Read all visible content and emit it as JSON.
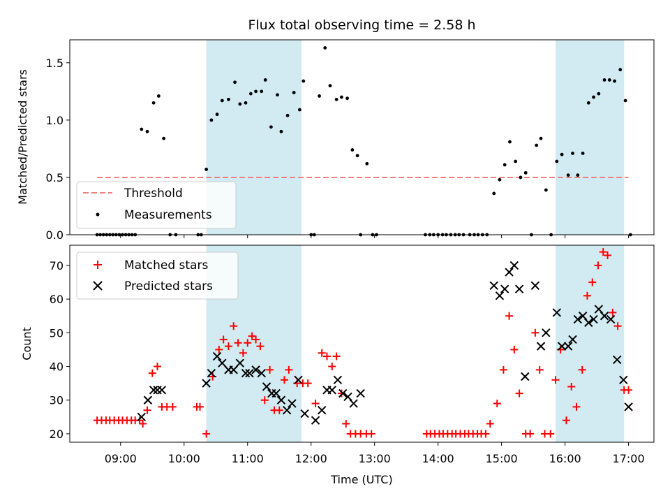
{
  "chart_data": [
    {
      "type": "scatter",
      "title": "Flux total observing time = 2.58 h",
      "ylabel": "Matched/Predicted stars",
      "xlabel": "",
      "ylim": [
        0,
        1.7
      ],
      "yticks": [
        0.0,
        0.5,
        1.0,
        1.5
      ],
      "ytick_labels": [
        "0.0",
        "0.5",
        "1.0",
        "1.5"
      ],
      "threshold": 0.5,
      "legend": {
        "position": "lower-left",
        "entries": [
          "Threshold",
          "Measurements"
        ]
      },
      "colors": {
        "threshold": "#f08080",
        "measurements": "#000000",
        "span": "#add8e6"
      },
      "series": [
        {
          "name": "Measurements",
          "points": [
            [
              8.63,
              0
            ],
            [
              8.68,
              0
            ],
            [
              8.73,
              0
            ],
            [
              8.78,
              0
            ],
            [
              8.83,
              0
            ],
            [
              8.88,
              0
            ],
            [
              8.93,
              0
            ],
            [
              8.98,
              0
            ],
            [
              9.03,
              0
            ],
            [
              9.08,
              0
            ],
            [
              9.13,
              0
            ],
            [
              9.18,
              0
            ],
            [
              9.23,
              0
            ],
            [
              9.33,
              0.92
            ],
            [
              9.42,
              0.9
            ],
            [
              9.52,
              1.15
            ],
            [
              9.6,
              1.21
            ],
            [
              9.68,
              0.84
            ],
            [
              9.78,
              0
            ],
            [
              9.87,
              0
            ],
            [
              10.22,
              0
            ],
            [
              10.27,
              0
            ],
            [
              10.35,
              0.57
            ],
            [
              10.43,
              1.0
            ],
            [
              10.52,
              1.05
            ],
            [
              10.6,
              1.17
            ],
            [
              10.7,
              1.18
            ],
            [
              10.8,
              1.33
            ],
            [
              10.88,
              1.14
            ],
            [
              10.97,
              1.15
            ],
            [
              11.05,
              1.23
            ],
            [
              11.13,
              1.25
            ],
            [
              11.22,
              1.25
            ],
            [
              11.28,
              1.35
            ],
            [
              11.37,
              0.94
            ],
            [
              11.47,
              1.22
            ],
            [
              11.53,
              0.9
            ],
            [
              11.63,
              1.04
            ],
            [
              11.73,
              1.24
            ],
            [
              11.82,
              1.09
            ],
            [
              11.88,
              1.34
            ],
            [
              12.0,
              0
            ],
            [
              12.05,
              0
            ],
            [
              12.13,
              1.21
            ],
            [
              12.22,
              1.63
            ],
            [
              12.3,
              1.3
            ],
            [
              12.4,
              1.18
            ],
            [
              12.48,
              1.2
            ],
            [
              12.57,
              1.19
            ],
            [
              12.65,
              0.74
            ],
            [
              12.73,
              0.69
            ],
            [
              12.78,
              0
            ],
            [
              12.88,
              0.62
            ],
            [
              12.97,
              0
            ],
            [
              13.03,
              0
            ],
            [
              13.8,
              0
            ],
            [
              13.87,
              0
            ],
            [
              13.93,
              0
            ],
            [
              14.0,
              0
            ],
            [
              14.07,
              0
            ],
            [
              14.13,
              0
            ],
            [
              14.2,
              0
            ],
            [
              14.27,
              0
            ],
            [
              14.33,
              0
            ],
            [
              14.4,
              0
            ],
            [
              14.5,
              0
            ],
            [
              14.57,
              0
            ],
            [
              14.63,
              0
            ],
            [
              14.7,
              0
            ],
            [
              14.77,
              0
            ],
            [
              14.88,
              0.36
            ],
            [
              14.97,
              0.48
            ],
            [
              15.05,
              0.61
            ],
            [
              15.13,
              0.81
            ],
            [
              15.22,
              0.64
            ],
            [
              15.3,
              0.5
            ],
            [
              15.38,
              0.54
            ],
            [
              15.47,
              0
            ],
            [
              15.55,
              0.78
            ],
            [
              15.62,
              0.84
            ],
            [
              15.7,
              0.39
            ],
            [
              15.78,
              0
            ],
            [
              15.87,
              0.64
            ],
            [
              15.95,
              0.7
            ],
            [
              16.05,
              0.52
            ],
            [
              16.12,
              0.71
            ],
            [
              16.2,
              0.52
            ],
            [
              16.28,
              0.71
            ],
            [
              16.37,
              1.15
            ],
            [
              16.45,
              1.2
            ],
            [
              16.53,
              1.23
            ],
            [
              16.62,
              1.35
            ],
            [
              16.7,
              1.35
            ],
            [
              16.78,
              1.34
            ],
            [
              16.87,
              1.44
            ],
            [
              16.95,
              1.17
            ],
            [
              17.03,
              0
            ]
          ]
        }
      ]
    },
    {
      "type": "scatter",
      "title": "",
      "xlabel": "Time (UTC)",
      "ylabel": "Count",
      "xlim": [
        8.2,
        17.4
      ],
      "ylim": [
        17.5,
        76
      ],
      "yticks": [
        20,
        30,
        40,
        50,
        60,
        70
      ],
      "ytick_labels": [
        "20",
        "30",
        "40",
        "50",
        "60",
        "70"
      ],
      "xticks": [
        9,
        10,
        11,
        12,
        13,
        14,
        15,
        16,
        17
      ],
      "xtick_labels": [
        "09:00",
        "10:00",
        "11:00",
        "12:00",
        "13:00",
        "14:00",
        "15:00",
        "16:00",
        "17:00"
      ],
      "legend": {
        "position": "upper-left",
        "entries": [
          "Matched stars",
          "Predicted stars"
        ]
      },
      "colors": {
        "matched": "#ff0000",
        "predicted": "#000000",
        "span": "#add8e6"
      },
      "shaded_spans": [
        [
          10.35,
          11.85
        ],
        [
          15.85,
          16.93
        ]
      ],
      "series": [
        {
          "name": "Matched stars",
          "points": [
            [
              8.63,
              24
            ],
            [
              8.7,
              24
            ],
            [
              8.77,
              24
            ],
            [
              8.83,
              24
            ],
            [
              8.9,
              24
            ],
            [
              8.97,
              24
            ],
            [
              9.03,
              24
            ],
            [
              9.1,
              24
            ],
            [
              9.17,
              24
            ],
            [
              9.23,
              24
            ],
            [
              9.3,
              24
            ],
            [
              9.35,
              23
            ],
            [
              9.42,
              27
            ],
            [
              9.5,
              38
            ],
            [
              9.58,
              40
            ],
            [
              9.65,
              28
            ],
            [
              9.73,
              28
            ],
            [
              9.82,
              28
            ],
            [
              10.2,
              28
            ],
            [
              10.25,
              28
            ],
            [
              10.35,
              20
            ],
            [
              10.45,
              37
            ],
            [
              10.55,
              45
            ],
            [
              10.62,
              48
            ],
            [
              10.7,
              46
            ],
            [
              10.78,
              52
            ],
            [
              10.85,
              47
            ],
            [
              10.93,
              44
            ],
            [
              11.0,
              47
            ],
            [
              11.07,
              49
            ],
            [
              11.13,
              48
            ],
            [
              11.2,
              46
            ],
            [
              11.27,
              30
            ],
            [
              11.35,
              39
            ],
            [
              11.42,
              27
            ],
            [
              11.5,
              27
            ],
            [
              11.58,
              36
            ],
            [
              11.65,
              39
            ],
            [
              11.78,
              35
            ],
            [
              11.87,
              35
            ],
            [
              11.95,
              35
            ],
            [
              12.07,
              29
            ],
            [
              12.17,
              44
            ],
            [
              12.25,
              43
            ],
            [
              12.33,
              40
            ],
            [
              12.4,
              43
            ],
            [
              12.48,
              32
            ],
            [
              12.55,
              23
            ],
            [
              12.62,
              20
            ],
            [
              12.7,
              20
            ],
            [
              12.78,
              20
            ],
            [
              12.87,
              20
            ],
            [
              12.95,
              20
            ],
            [
              13.82,
              20
            ],
            [
              13.88,
              20
            ],
            [
              13.95,
              20
            ],
            [
              14.02,
              20
            ],
            [
              14.08,
              20
            ],
            [
              14.15,
              20
            ],
            [
              14.22,
              20
            ],
            [
              14.28,
              20
            ],
            [
              14.35,
              20
            ],
            [
              14.42,
              20
            ],
            [
              14.48,
              20
            ],
            [
              14.55,
              20
            ],
            [
              14.62,
              20
            ],
            [
              14.68,
              20
            ],
            [
              14.75,
              20
            ],
            [
              14.82,
              23
            ],
            [
              14.93,
              29
            ],
            [
              15.03,
              39
            ],
            [
              15.12,
              55
            ],
            [
              15.2,
              45
            ],
            [
              15.28,
              32
            ],
            [
              15.38,
              20
            ],
            [
              15.45,
              20
            ],
            [
              15.53,
              50
            ],
            [
              15.6,
              39
            ],
            [
              15.68,
              20
            ],
            [
              15.77,
              20
            ],
            [
              15.85,
              36
            ],
            [
              15.93,
              45
            ],
            [
              16.02,
              24
            ],
            [
              16.1,
              34
            ],
            [
              16.18,
              28
            ],
            [
              16.27,
              39
            ],
            [
              16.35,
              61
            ],
            [
              16.43,
              65
            ],
            [
              16.52,
              70
            ],
            [
              16.6,
              74
            ],
            [
              16.67,
              73
            ],
            [
              16.75,
              56
            ],
            [
              16.83,
              52
            ],
            [
              16.93,
              33
            ],
            [
              17.0,
              33
            ]
          ]
        },
        {
          "name": "Predicted stars",
          "points": [
            [
              9.33,
              25
            ],
            [
              9.43,
              30
            ],
            [
              9.52,
              33
            ],
            [
              9.58,
              33
            ],
            [
              9.65,
              33
            ],
            [
              10.35,
              35
            ],
            [
              10.43,
              38
            ],
            [
              10.52,
              43
            ],
            [
              10.6,
              41
            ],
            [
              10.7,
              39
            ],
            [
              10.78,
              39
            ],
            [
              10.88,
              41
            ],
            [
              10.97,
              38
            ],
            [
              11.03,
              38
            ],
            [
              11.13,
              39
            ],
            [
              11.22,
              38
            ],
            [
              11.3,
              34
            ],
            [
              11.38,
              32
            ],
            [
              11.45,
              32
            ],
            [
              11.53,
              30
            ],
            [
              11.62,
              27
            ],
            [
              11.7,
              29
            ],
            [
              11.8,
              36
            ],
            [
              11.9,
              26
            ],
            [
              12.07,
              24
            ],
            [
              12.17,
              27
            ],
            [
              12.25,
              33
            ],
            [
              12.33,
              33
            ],
            [
              12.42,
              36
            ],
            [
              12.5,
              32
            ],
            [
              12.58,
              31
            ],
            [
              12.67,
              29
            ],
            [
              12.78,
              32
            ],
            [
              14.88,
              64
            ],
            [
              14.97,
              61
            ],
            [
              15.05,
              63
            ],
            [
              15.12,
              68
            ],
            [
              15.2,
              70
            ],
            [
              15.28,
              63
            ],
            [
              15.37,
              37
            ],
            [
              15.53,
              64
            ],
            [
              15.62,
              46
            ],
            [
              15.7,
              50
            ],
            [
              15.87,
              56
            ],
            [
              15.95,
              46
            ],
            [
              16.05,
              46
            ],
            [
              16.12,
              48
            ],
            [
              16.2,
              54
            ],
            [
              16.28,
              55
            ],
            [
              16.37,
              53
            ],
            [
              16.45,
              54
            ],
            [
              16.53,
              57
            ],
            [
              16.62,
              55
            ],
            [
              16.72,
              54
            ],
            [
              16.82,
              42
            ],
            [
              16.92,
              36
            ],
            [
              17.0,
              28
            ]
          ]
        }
      ]
    }
  ]
}
